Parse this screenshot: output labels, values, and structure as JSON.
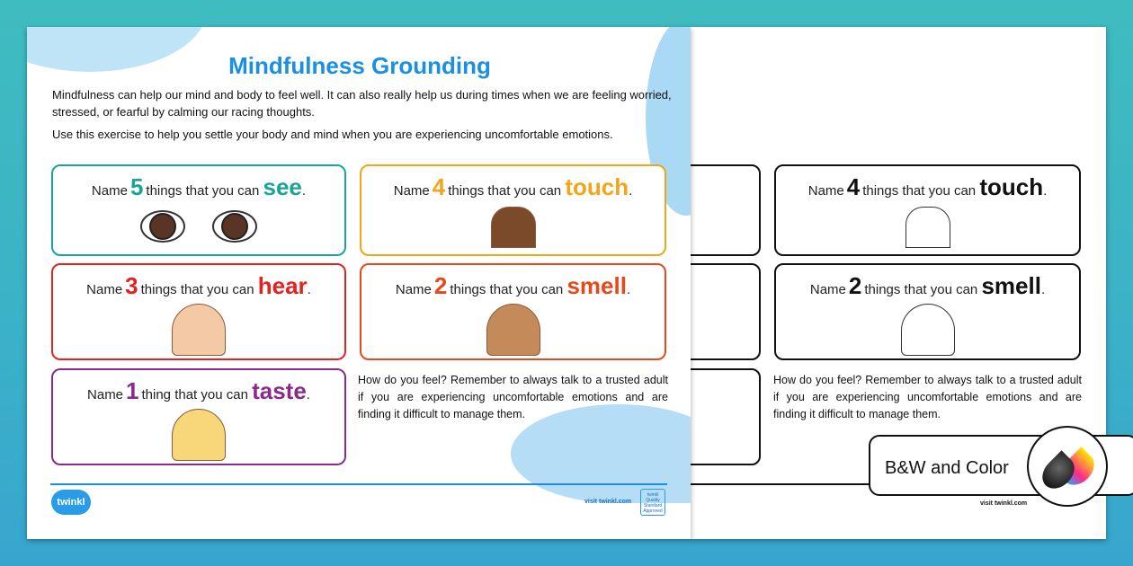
{
  "worksheet": {
    "title": "Mindfulness Grounding",
    "intro": "Mindfulness can help our mind and body to feel well. It can also really help us during times when we are feeling worried, stressed, or fearful by calming our racing thoughts.",
    "instruction": "Use this exercise to help you settle your body and mind when you are experiencing uncomfortable emotions.",
    "cards": [
      {
        "prefix": "Name",
        "number": "5",
        "middle": "things that you can",
        "verb": "see",
        "end": ".",
        "color": "#1aa39a",
        "icon": "eyes-icon"
      },
      {
        "prefix": "Name",
        "number": "4",
        "middle": "things that you can",
        "verb": "touch",
        "end": ".",
        "color": "#f2a516",
        "icon": "pointing-hand-icon"
      },
      {
        "prefix": "Name",
        "number": "3",
        "middle": "things that you can",
        "verb": "hear",
        "end": ".",
        "color": "#e32222",
        "icon": "girl-listening-icon"
      },
      {
        "prefix": "Name",
        "number": "2",
        "middle": "things that you can",
        "verb": "smell",
        "end": ".",
        "color": "#e8491c",
        "icon": "boy-smelling-flowers-icon"
      },
      {
        "prefix": "Name",
        "number": "1",
        "middle": "thing that you can",
        "verb": "taste",
        "end": ".",
        "color": "#8a2b8c",
        "icon": "girl-eating-icon"
      }
    ],
    "closing": "How do you feel? Remember to always talk to a trusted adult if you are experiencing uncomfortable emotions and are finding it difficult to manage them.",
    "logo": "twinkl",
    "footer_link": "visit twinkl.com",
    "badge": "twinkl Quality Standard Approved"
  },
  "banner": {
    "label": "B&W and Color",
    "icon": "ink-drops-icon"
  },
  "colors": {
    "accent": "#1a8fe3",
    "background": "#3cb3c6"
  }
}
